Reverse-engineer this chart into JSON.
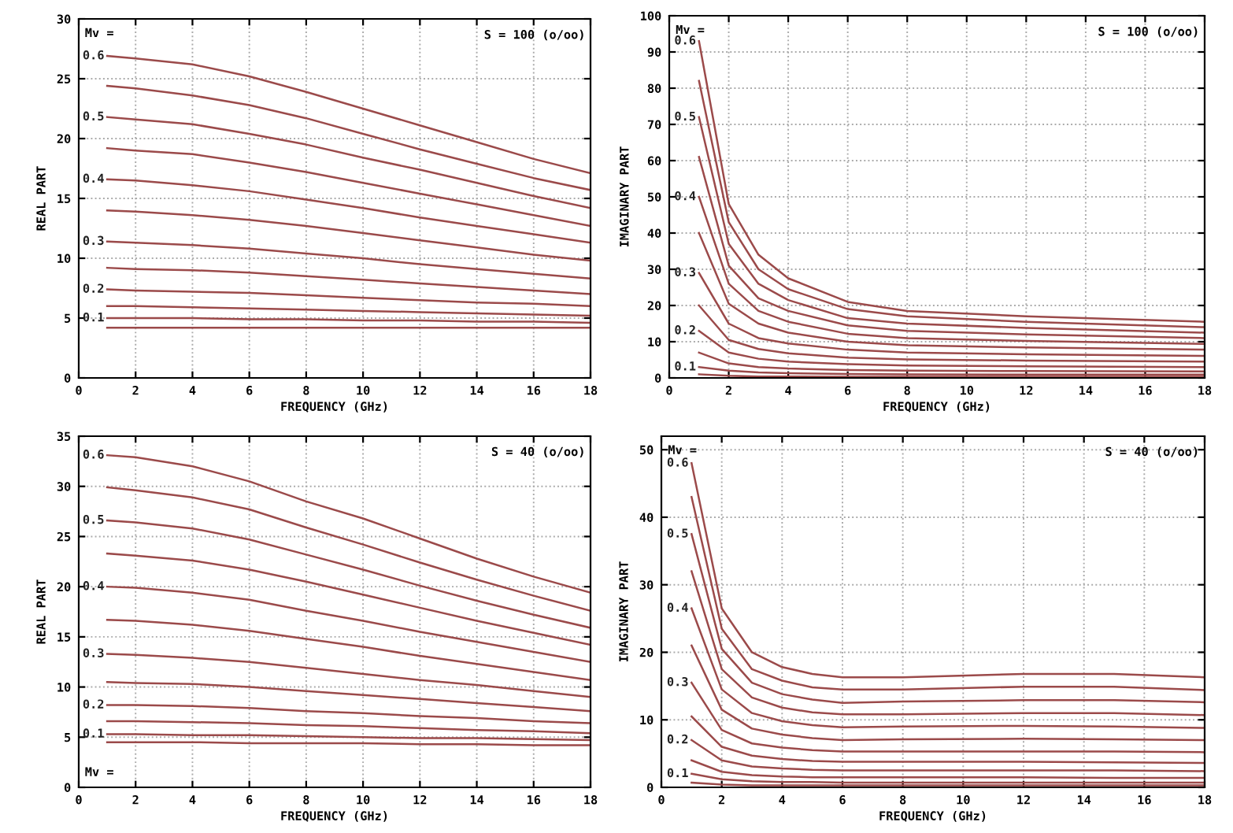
{
  "chart_data": [
    {
      "type": "line",
      "xlabel": "FREQUENCY (GHz)",
      "ylabel": "REAL PART",
      "xlim": [
        0,
        18
      ],
      "ylim": [
        0,
        30
      ],
      "xticks": [
        0,
        2,
        4,
        6,
        8,
        10,
        12,
        14,
        16,
        18
      ],
      "yticks": [
        0,
        5,
        10,
        15,
        20,
        25,
        30
      ],
      "grid": true,
      "legend": false,
      "marker": "none",
      "line_style": "solid",
      "annotations": [
        "S = 100 (o/oo)",
        "Mv ="
      ],
      "x": [
        1,
        2,
        4,
        6,
        8,
        10,
        12,
        14,
        16,
        18
      ],
      "series": [
        {
          "name": "0.6",
          "color": "#9b4a4a",
          "values": [
            26.9,
            26.7,
            26.2,
            25.2,
            23.9,
            22.5,
            21.1,
            19.7,
            18.3,
            17.1
          ]
        },
        {
          "color": "#9b4a4a",
          "values": [
            24.4,
            24.2,
            23.6,
            22.8,
            21.7,
            20.4,
            19.1,
            17.9,
            16.7,
            15.7
          ]
        },
        {
          "name": "0.5",
          "color": "#9b4a4a",
          "values": [
            21.8,
            21.6,
            21.2,
            20.4,
            19.5,
            18.4,
            17.4,
            16.3,
            15.2,
            14.2
          ]
        },
        {
          "color": "#9b4a4a",
          "values": [
            19.2,
            19.0,
            18.7,
            18.0,
            17.2,
            16.3,
            15.4,
            14.5,
            13.6,
            12.7
          ]
        },
        {
          "name": "0.4",
          "color": "#9b4a4a",
          "values": [
            16.6,
            16.5,
            16.1,
            15.6,
            14.9,
            14.2,
            13.4,
            12.7,
            12.0,
            11.3
          ]
        },
        {
          "color": "#9b4a4a",
          "values": [
            14.0,
            13.9,
            13.6,
            13.2,
            12.7,
            12.1,
            11.5,
            10.9,
            10.3,
            9.8
          ]
        },
        {
          "name": "0.3",
          "color": "#9b4a4a",
          "values": [
            11.4,
            11.3,
            11.1,
            10.8,
            10.4,
            10.0,
            9.5,
            9.1,
            8.7,
            8.3
          ]
        },
        {
          "color": "#9b4a4a",
          "values": [
            9.2,
            9.1,
            9.0,
            8.8,
            8.5,
            8.2,
            7.9,
            7.6,
            7.3,
            7.0
          ]
        },
        {
          "name": "0.2",
          "color": "#9b4a4a",
          "values": [
            7.4,
            7.3,
            7.2,
            7.1,
            6.9,
            6.7,
            6.5,
            6.3,
            6.2,
            6.0
          ]
        },
        {
          "color": "#9b4a4a",
          "values": [
            6.0,
            6.0,
            5.9,
            5.8,
            5.7,
            5.6,
            5.5,
            5.4,
            5.3,
            5.2
          ]
        },
        {
          "name": "0.1",
          "color": "#9b4a4a",
          "values": [
            5.0,
            5.0,
            5.0,
            4.9,
            4.9,
            4.8,
            4.8,
            4.7,
            4.7,
            4.6
          ]
        },
        {
          "color": "#9b4a4a",
          "values": [
            4.2,
            4.2,
            4.2,
            4.2,
            4.2,
            4.2,
            4.2,
            4.2,
            4.2,
            4.2
          ]
        }
      ]
    },
    {
      "type": "line",
      "xlabel": "FREQUENCY (GHz)",
      "ylabel": "IMAGINARY PART",
      "xlim": [
        0,
        18
      ],
      "ylim": [
        0,
        100
      ],
      "xticks": [
        0,
        2,
        4,
        6,
        8,
        10,
        12,
        14,
        16,
        18
      ],
      "yticks": [
        0,
        10,
        20,
        30,
        40,
        50,
        60,
        70,
        80,
        90,
        100
      ],
      "grid": true,
      "legend": false,
      "marker": "none",
      "line_style": "solid",
      "annotations": [
        "S = 100 (o/oo)",
        "Mv ="
      ],
      "x": [
        1,
        2,
        3,
        4,
        6,
        8,
        12,
        18
      ],
      "series": [
        {
          "name": "0.6",
          "color": "#9b4a4a",
          "values": [
            93,
            48,
            34,
            27.5,
            21,
            18.5,
            17,
            15.5
          ]
        },
        {
          "color": "#9b4a4a",
          "values": [
            82,
            43,
            30,
            24.5,
            19,
            17,
            15.5,
            14
          ]
        },
        {
          "name": "0.5",
          "color": "#9b4a4a",
          "values": [
            72,
            37,
            26,
            21.5,
            16.5,
            15,
            13.8,
            12.5
          ]
        },
        {
          "color": "#9b4a4a",
          "values": [
            61,
            31,
            22,
            18.5,
            14.5,
            13,
            12,
            11
          ]
        },
        {
          "name": "0.4",
          "color": "#9b4a4a",
          "values": [
            50,
            26,
            18.5,
            15.5,
            12.2,
            11,
            10.2,
            9.4
          ]
        },
        {
          "color": "#9b4a4a",
          "values": [
            40,
            20.5,
            15,
            12.5,
            10,
            9,
            8.4,
            7.8
          ]
        },
        {
          "name": "0.3",
          "color": "#9b4a4a",
          "values": [
            29,
            15,
            11,
            9.5,
            7.8,
            7,
            6.5,
            6.1
          ]
        },
        {
          "color": "#9b4a4a",
          "values": [
            20,
            10.5,
            8,
            6.8,
            5.6,
            5.1,
            4.8,
            4.5
          ]
        },
        {
          "name": "0.2",
          "color": "#9b4a4a",
          "values": [
            13,
            7,
            5.3,
            4.5,
            3.8,
            3.4,
            3.2,
            3.0
          ]
        },
        {
          "color": "#9b4a4a",
          "values": [
            7,
            4,
            3,
            2.6,
            2.2,
            2.0,
            1.9,
            1.8
          ]
        },
        {
          "name": "0.1",
          "color": "#9b4a4a",
          "values": [
            3,
            2,
            1.5,
            1.3,
            1.1,
            1.0,
            0.9,
            0.9
          ]
        },
        {
          "color": "#9b4a4a",
          "values": [
            1,
            0.6,
            0.4,
            0.4,
            0.3,
            0.3,
            0.3,
            0.3
          ]
        }
      ]
    },
    {
      "type": "line",
      "xlabel": "FREQUENCY (GHz)",
      "ylabel": "REAL PART",
      "xlim": [
        0,
        18
      ],
      "ylim": [
        0,
        35
      ],
      "xticks": [
        0,
        2,
        4,
        6,
        8,
        10,
        12,
        14,
        16,
        18
      ],
      "yticks": [
        0,
        5,
        10,
        15,
        20,
        25,
        30,
        35
      ],
      "grid": true,
      "legend": false,
      "marker": "none",
      "line_style": "solid",
      "annotations": [
        "S = 40 (o/oo)",
        "Mv ="
      ],
      "x": [
        1,
        2,
        4,
        6,
        8,
        10,
        12,
        14,
        16,
        18
      ],
      "series": [
        {
          "name": "0.6",
          "color": "#9b4a4a",
          "values": [
            33.1,
            32.9,
            32.0,
            30.5,
            28.5,
            26.8,
            24.8,
            22.8,
            21.0,
            19.4
          ]
        },
        {
          "color": "#9b4a4a",
          "values": [
            29.9,
            29.6,
            28.9,
            27.7,
            25.9,
            24.2,
            22.4,
            20.7,
            19.1,
            17.6
          ]
        },
        {
          "name": "0.5",
          "color": "#9b4a4a",
          "values": [
            26.6,
            26.4,
            25.8,
            24.7,
            23.2,
            21.7,
            20.1,
            18.6,
            17.2,
            15.9
          ]
        },
        {
          "color": "#9b4a4a",
          "values": [
            23.3,
            23.1,
            22.6,
            21.7,
            20.5,
            19.2,
            17.9,
            16.6,
            15.4,
            14.2
          ]
        },
        {
          "name": "0.4",
          "color": "#9b4a4a",
          "values": [
            20.0,
            19.9,
            19.4,
            18.7,
            17.6,
            16.6,
            15.5,
            14.5,
            13.5,
            12.5
          ]
        },
        {
          "color": "#9b4a4a",
          "values": [
            16.7,
            16.6,
            16.2,
            15.6,
            14.8,
            14.0,
            13.1,
            12.3,
            11.5,
            10.7
          ]
        },
        {
          "name": "0.3",
          "color": "#9b4a4a",
          "values": [
            13.3,
            13.2,
            12.9,
            12.5,
            11.9,
            11.3,
            10.7,
            10.2,
            9.6,
            9.0
          ]
        },
        {
          "color": "#9b4a4a",
          "values": [
            10.5,
            10.4,
            10.3,
            10.0,
            9.6,
            9.2,
            8.8,
            8.4,
            8.0,
            7.6
          ]
        },
        {
          "name": "0.2",
          "color": "#9b4a4a",
          "values": [
            8.2,
            8.2,
            8.1,
            7.9,
            7.6,
            7.4,
            7.1,
            6.9,
            6.6,
            6.4
          ]
        },
        {
          "color": "#9b4a4a",
          "values": [
            6.6,
            6.6,
            6.5,
            6.4,
            6.2,
            6.1,
            5.9,
            5.7,
            5.6,
            5.4
          ]
        },
        {
          "name": "0.1",
          "color": "#9b4a4a",
          "values": [
            5.3,
            5.3,
            5.2,
            5.2,
            5.1,
            5.0,
            4.9,
            4.9,
            4.8,
            4.7
          ]
        },
        {
          "color": "#9b4a4a",
          "values": [
            4.5,
            4.5,
            4.5,
            4.4,
            4.4,
            4.4,
            4.3,
            4.3,
            4.2,
            4.2
          ]
        }
      ]
    },
    {
      "type": "line",
      "xlabel": "FREQUENCY (GHz)",
      "ylabel": "IMAGINARY PART",
      "xlim": [
        0,
        18
      ],
      "ylim": [
        0,
        52
      ],
      "xticks": [
        0,
        2,
        4,
        6,
        8,
        10,
        12,
        14,
        16,
        18
      ],
      "yticks": [
        0,
        10,
        20,
        30,
        40,
        50
      ],
      "grid": true,
      "legend": false,
      "marker": "none",
      "line_style": "solid",
      "annotations": [
        "S = 40 (o/oo)",
        "Mv ="
      ],
      "x": [
        1,
        2,
        3,
        4,
        5,
        6,
        8,
        12,
        15,
        18
      ],
      "series": [
        {
          "name": "0.6",
          "color": "#9b4a4a",
          "values": [
            48,
            26.5,
            20,
            17.8,
            16.8,
            16.3,
            16.3,
            16.8,
            16.8,
            16.3
          ]
        },
        {
          "color": "#9b4a4a",
          "values": [
            43,
            23.5,
            17.5,
            15.8,
            14.8,
            14.5,
            14.5,
            14.9,
            14.9,
            14.4
          ]
        },
        {
          "name": "0.5",
          "color": "#9b4a4a",
          "values": [
            37.5,
            20.5,
            15.5,
            13.8,
            13,
            12.5,
            12.7,
            12.9,
            12.9,
            12.6
          ]
        },
        {
          "color": "#9b4a4a",
          "values": [
            32,
            17.5,
            13.3,
            11.8,
            11.1,
            10.8,
            10.8,
            11.0,
            11.0,
            10.7
          ]
        },
        {
          "name": "0.4",
          "color": "#9b4a4a",
          "values": [
            26.5,
            14.5,
            11,
            9.8,
            9.2,
            8.9,
            9.0,
            9.1,
            9.0,
            8.8
          ]
        },
        {
          "color": "#9b4a4a",
          "values": [
            21,
            11.5,
            8.7,
            7.8,
            7.3,
            7.0,
            7.1,
            7.2,
            7.1,
            7.0
          ]
        },
        {
          "name": "0.3",
          "color": "#9b4a4a",
          "values": [
            15.5,
            8.5,
            6.5,
            5.9,
            5.5,
            5.3,
            5.3,
            5.3,
            5.3,
            5.2
          ]
        },
        {
          "color": "#9b4a4a",
          "values": [
            10.5,
            6,
            4.7,
            4.2,
            3.9,
            3.8,
            3.8,
            3.8,
            3.7,
            3.6
          ]
        },
        {
          "name": "0.2",
          "color": "#9b4a4a",
          "values": [
            7,
            4,
            3.1,
            2.8,
            2.6,
            2.5,
            2.5,
            2.5,
            2.5,
            2.4
          ]
        },
        {
          "color": "#9b4a4a",
          "values": [
            4,
            2.3,
            1.8,
            1.6,
            1.5,
            1.5,
            1.5,
            1.5,
            1.4,
            1.4
          ]
        },
        {
          "name": "0.1",
          "color": "#9b4a4a",
          "values": [
            2,
            1.2,
            0.9,
            0.8,
            0.8,
            0.7,
            0.7,
            0.7,
            0.7,
            0.7
          ]
        },
        {
          "color": "#9b4a4a",
          "values": [
            0.7,
            0.4,
            0.3,
            0.3,
            0.3,
            0.3,
            0.3,
            0.3,
            0.3,
            0.3
          ]
        }
      ]
    }
  ]
}
